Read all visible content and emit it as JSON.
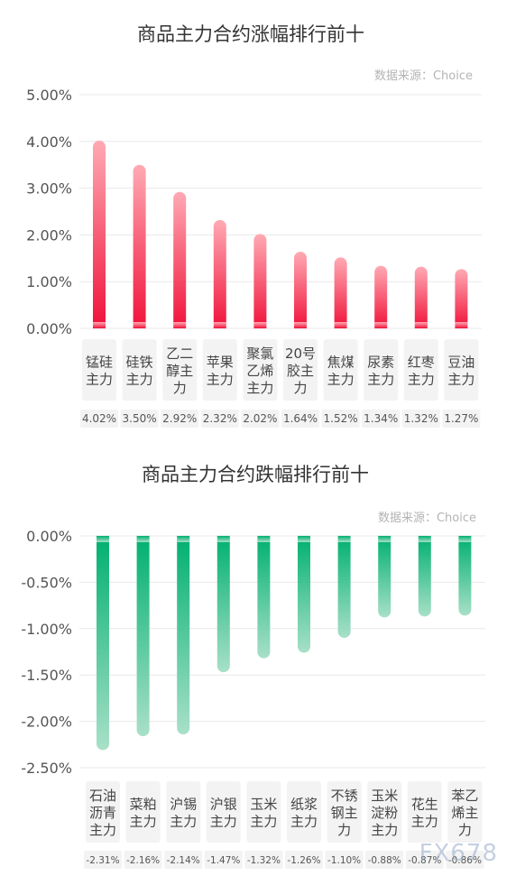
{
  "charts": [
    {
      "title": "商品主力合约涨幅排行前十",
      "source": "数据来源：Choice",
      "y_ticks": [
        "5.00%",
        "4.00%",
        "3.00%",
        "2.00%",
        "1.00%",
        "0.00%"
      ]
    },
    {
      "title": "商品主力合约跌幅排行前十",
      "source": "数据来源：Choice",
      "y_ticks": [
        "0.00%",
        "-0.50%",
        "-1.00%",
        "-1.50%",
        "-2.00%",
        "-2.50%"
      ]
    }
  ],
  "watermark": "FX678",
  "colors": {
    "up_top": "#ffaab4",
    "up_bottom": "#f0123a",
    "down_top": "#00b070",
    "down_bottom": "#a8e0c8",
    "grid": "#e8e8e8",
    "label_box": "#f3f3f3"
  },
  "chart_data": [
    {
      "type": "bar",
      "categories": [
        "锰硅主力",
        "硅铁主力",
        "乙二醇主力",
        "苹果主力",
        "聚氯乙烯主力",
        "20号胶主力",
        "焦煤主力",
        "尿素主力",
        "红枣主力",
        "豆油主力"
      ],
      "category_lines": [
        [
          "锰硅",
          "主力"
        ],
        [
          "硅铁",
          "主力"
        ],
        [
          "乙二",
          "醇主",
          "力"
        ],
        [
          "苹果",
          "主力"
        ],
        [
          "聚氯",
          "乙烯",
          "主力"
        ],
        [
          "20号",
          "胶主",
          "力"
        ],
        [
          "焦煤",
          "主力"
        ],
        [
          "尿素",
          "主力"
        ],
        [
          "红枣",
          "主力"
        ],
        [
          "豆油",
          "主力"
        ]
      ],
      "values": [
        4.02,
        3.5,
        2.92,
        2.32,
        2.02,
        1.64,
        1.52,
        1.34,
        1.32,
        1.27
      ],
      "value_labels": [
        "4.02%",
        "3.50%",
        "2.92%",
        "2.32%",
        "2.02%",
        "1.64%",
        "1.52%",
        "1.34%",
        "1.32%",
        "1.27%"
      ],
      "ylim": [
        0,
        5
      ]
    },
    {
      "type": "bar",
      "categories": [
        "石油沥青主力",
        "菜粕主力",
        "沪锡主力",
        "沪银主力",
        "玉米主力",
        "纸浆主力",
        "不锈钢主力",
        "玉米淀粉主力",
        "花生主力",
        "苯乙烯主力"
      ],
      "category_lines": [
        [
          "石油",
          "沥青",
          "主力"
        ],
        [
          "菜粕",
          "主力"
        ],
        [
          "沪锡",
          "主力"
        ],
        [
          "沪银",
          "主力"
        ],
        [
          "玉米",
          "主力"
        ],
        [
          "纸浆",
          "主力"
        ],
        [
          "不锈",
          "钢主",
          "力"
        ],
        [
          "玉米",
          "淀粉",
          "主力"
        ],
        [
          "花生",
          "主力"
        ],
        [
          "苯乙",
          "烯主",
          "力"
        ]
      ],
      "values": [
        -2.31,
        -2.16,
        -2.14,
        -1.47,
        -1.32,
        -1.26,
        -1.1,
        -0.88,
        -0.87,
        -0.86
      ],
      "value_labels": [
        "-2.31%",
        "-2.16%",
        "-2.14%",
        "-1.47%",
        "-1.32%",
        "-1.26%",
        "-1.10%",
        "-0.88%",
        "-0.87%",
        "-0.86%"
      ],
      "ylim": [
        -2.5,
        0
      ]
    }
  ]
}
